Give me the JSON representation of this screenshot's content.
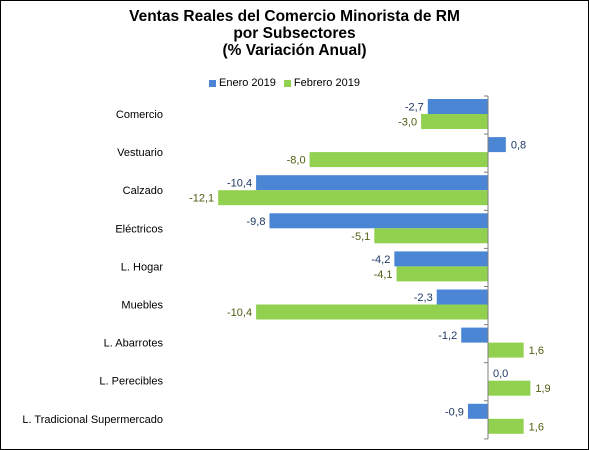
{
  "chart_data": {
    "type": "bar",
    "orientation": "horizontal",
    "title_lines": [
      "Ventas Reales del Comercio Minorista de RM",
      "por Subsectores",
      "(% Variación Anual)"
    ],
    "categories": [
      "Comercio",
      "Vestuario",
      "Calzado",
      "Eléctricos",
      "L. Hogar",
      "Muebles",
      "L. Abarrotes",
      "L. Perecibles",
      "L. Tradicional Supermercado"
    ],
    "series": [
      {
        "name": "Enero 2019",
        "color": "#4a86d4",
        "values": [
          -2.7,
          0.8,
          -10.4,
          -9.8,
          -4.2,
          -2.3,
          -1.2,
          0.0,
          -0.9
        ],
        "labels": [
          "-2,7",
          "0,8",
          "-10,4",
          "-9,8",
          "-4,2",
          "-2,3",
          "-1,2",
          "0,0",
          "-0,9"
        ]
      },
      {
        "name": "Febrero 2019",
        "color": "#92d050",
        "values": [
          -3.0,
          -8.0,
          -12.1,
          -5.1,
          -4.1,
          -10.4,
          1.6,
          1.9,
          1.6
        ],
        "labels": [
          "-3,0",
          "-8,0",
          "-12,1",
          "-5,1",
          "-4,1",
          "-10,4",
          "1,6",
          "1,9",
          "1,6"
        ]
      }
    ],
    "label_colors": [
      "#1f3864",
      "#4f5f12"
    ],
    "legend_position": "top",
    "grid": false
  }
}
